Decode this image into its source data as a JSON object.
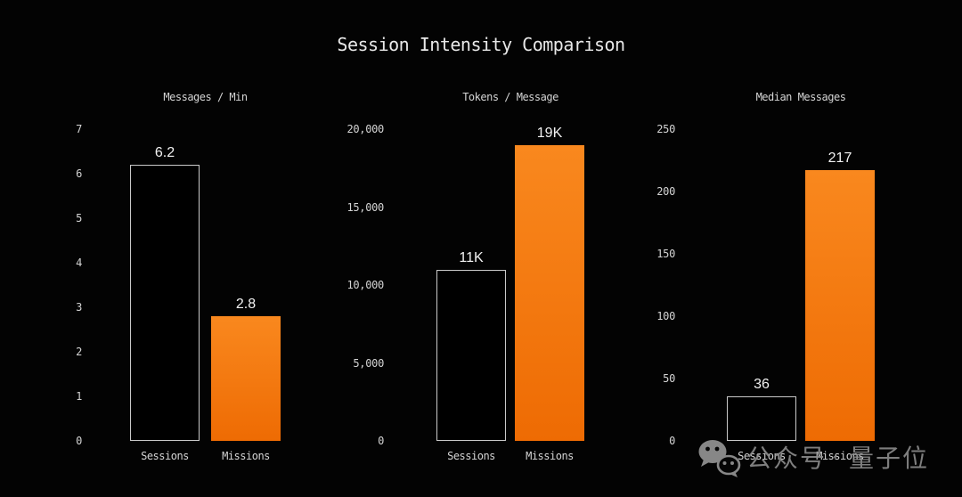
{
  "page": {
    "title": "Session Intensity Comparison"
  },
  "chart_data": [
    {
      "type": "bar",
      "title": "Messages / Min",
      "categories": [
        "Sessions",
        "Missions"
      ],
      "values": [
        6.2,
        2.8
      ],
      "value_labels": [
        "6.2",
        "2.8"
      ],
      "ylim": [
        0,
        7
      ],
      "yticks": [
        0,
        1,
        2,
        3,
        4,
        5,
        6,
        7
      ],
      "ytick_labels": [
        "0",
        "1",
        "2",
        "3",
        "4",
        "5",
        "6",
        "7"
      ],
      "bar_styles": [
        "outline",
        "orange"
      ],
      "grid": false,
      "legend": "none"
    },
    {
      "type": "bar",
      "title": "Tokens / Message",
      "categories": [
        "Sessions",
        "Missions"
      ],
      "values": [
        11000,
        19000
      ],
      "value_labels": [
        "11K",
        "19K"
      ],
      "ylim": [
        0,
        20000
      ],
      "yticks": [
        0,
        5000,
        10000,
        15000,
        20000
      ],
      "ytick_labels": [
        "0",
        "5,000",
        "10,000",
        "15,000",
        "20,000"
      ],
      "bar_styles": [
        "outline",
        "orange"
      ],
      "grid": false,
      "legend": "none"
    },
    {
      "type": "bar",
      "title": "Median Messages",
      "categories": [
        "Sessions",
        "Missions"
      ],
      "values": [
        36,
        217
      ],
      "value_labels": [
        "36",
        "217"
      ],
      "ylim": [
        0,
        250
      ],
      "yticks": [
        0,
        50,
        100,
        150,
        200,
        250
      ],
      "ytick_labels": [
        "0",
        "50",
        "100",
        "150",
        "200",
        "250"
      ],
      "bar_styles": [
        "outline",
        "orange"
      ],
      "grid": false,
      "legend": "none"
    }
  ],
  "watermark": {
    "icon": "wechat-icon",
    "text_left": "公众号",
    "separator": "·",
    "text_right": "量子位"
  },
  "style": {
    "background": "#030303",
    "text_gray": "#d4d4d4",
    "title_color": "#e8e8e8",
    "value_color": "#f2f2f2",
    "orange_top": "#f9881e",
    "orange_bottom": "#ee6b03",
    "outline_border": "#c9c9c9",
    "watermark_gray": "#8f8f8f"
  }
}
